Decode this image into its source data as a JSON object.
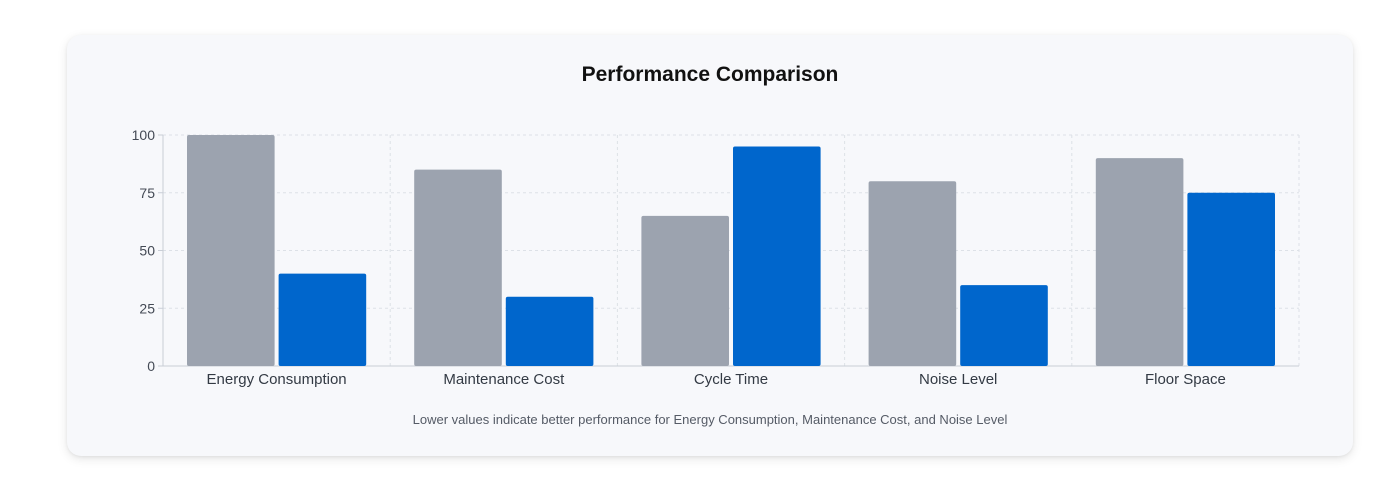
{
  "chart_data": {
    "type": "bar",
    "title": "Performance Comparison",
    "categories": [
      "Energy Consumption",
      "Maintenance Cost",
      "Cycle Time",
      "Noise Level",
      "Floor Space"
    ],
    "series": [
      {
        "values": [
          100,
          85,
          65,
          80,
          90
        ],
        "color": "#9ca3af"
      },
      {
        "values": [
          40,
          30,
          95,
          35,
          75
        ],
        "color": "#0066cc"
      }
    ],
    "ylim": [
      0,
      100
    ],
    "yticks": [
      0,
      25,
      50,
      75,
      100
    ],
    "grid": true,
    "legend": "none",
    "note": "Lower values indicate better performance for Energy Consumption, Maintenance Cost, and Noise Level"
  }
}
